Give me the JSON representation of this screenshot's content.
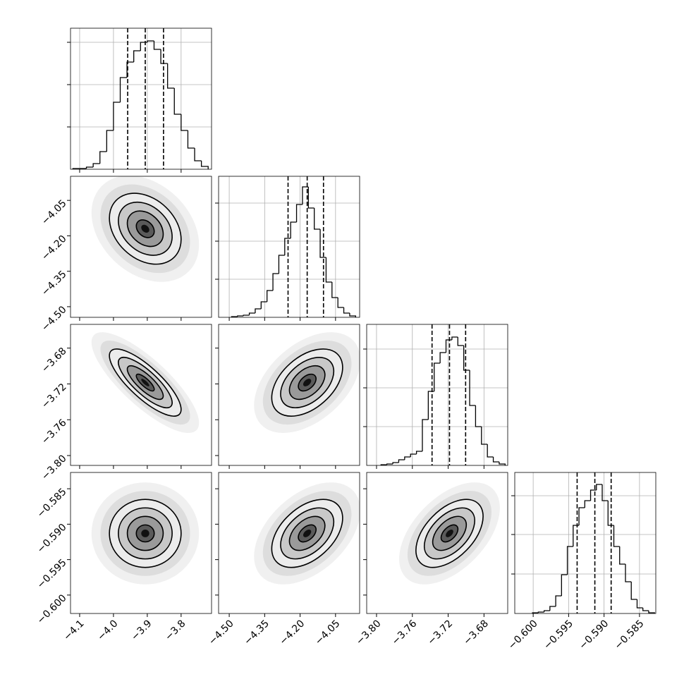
{
  "chart_data": {
    "type": "corner",
    "color": "#000000",
    "grid": true,
    "contour_levels": [
      0.5,
      1,
      1.5,
      2
    ],
    "hist_ylim": [
      0,
      200
    ],
    "params": [
      {
        "range": [
          -4.127,
          -3.71
        ],
        "ticks": [
          {
            "value": -4.1,
            "label": "−4.1"
          },
          {
            "value": -4.0,
            "label": "−4.0"
          },
          {
            "value": -3.9,
            "label": "−3.9"
          },
          {
            "value": -3.8,
            "label": "−3.8"
          }
        ],
        "quantiles": [
          -3.958,
          -3.906,
          -3.852
        ],
        "hist_yticks": [
          60,
          120,
          180
        ],
        "bins": [
          -4.12,
          -4.1,
          -4.08,
          -4.06,
          -4.04,
          -4.02,
          -4.0,
          -3.98,
          -3.96,
          -3.94,
          -3.92,
          -3.9,
          -3.88,
          -3.86,
          -3.84,
          -3.82,
          -3.8,
          -3.78,
          -3.76,
          -3.74,
          -3.72
        ],
        "counts": [
          1,
          1,
          3,
          8,
          25,
          55,
          95,
          130,
          152,
          168,
          180,
          182,
          170,
          150,
          115,
          78,
          55,
          30,
          12,
          4
        ]
      },
      {
        "range": [
          -4.545,
          -3.948
        ],
        "ticks": [
          {
            "value": -4.5,
            "label": "−4.50"
          },
          {
            "value": -4.35,
            "label": "−4.35"
          },
          {
            "value": -4.2,
            "label": "−4.20"
          },
          {
            "value": -4.05,
            "label": "−4.05"
          }
        ],
        "quantiles": [
          -4.251,
          -4.17,
          -4.101
        ],
        "hist_yticks": [
          54,
          108,
          162
        ],
        "bins": [
          -4.49,
          -4.465,
          -4.44,
          -4.415,
          -4.39,
          -4.365,
          -4.34,
          -4.315,
          -4.29,
          -4.265,
          -4.24,
          -4.215,
          -4.19,
          -4.165,
          -4.14,
          -4.115,
          -4.09,
          -4.065,
          -4.04,
          -4.015,
          -3.99,
          -3.965
        ],
        "counts": [
          1,
          2,
          3,
          6,
          12,
          22,
          38,
          62,
          88,
          112,
          135,
          160,
          185,
          155,
          125,
          85,
          50,
          28,
          14,
          6,
          2
        ]
      },
      {
        "range": [
          -3.811,
          -3.6535
        ],
        "ticks": [
          {
            "value": -3.8,
            "label": "−3.80"
          },
          {
            "value": -3.76,
            "label": "−3.76"
          },
          {
            "value": -3.72,
            "label": "−3.72"
          },
          {
            "value": -3.68,
            "label": "−3.68"
          }
        ],
        "quantiles": [
          -3.738,
          -3.7185,
          -3.7005
        ],
        "hist_yticks": [
          55,
          110,
          165
        ],
        "bins": [
          -3.795,
          -3.7884,
          -3.7818,
          -3.7752,
          -3.7686,
          -3.762,
          -3.7554,
          -3.7488,
          -3.7422,
          -3.7356,
          -3.729,
          -3.7224,
          -3.7158,
          -3.7092,
          -3.7026,
          -3.696,
          -3.6894,
          -3.6828,
          -3.6762,
          -3.6696,
          -3.663,
          -3.6564
        ],
        "counts": [
          1,
          2,
          4,
          8,
          12,
          16,
          20,
          65,
          105,
          145,
          160,
          178,
          182,
          170,
          135,
          85,
          55,
          30,
          12,
          5,
          2
        ]
      },
      {
        "range": [
          -0.6026,
          -0.5827
        ],
        "ticks": [
          {
            "value": -0.6,
            "label": "−0.600"
          },
          {
            "value": -0.595,
            "label": "−0.595"
          },
          {
            "value": -0.59,
            "label": "−0.590"
          },
          {
            "value": -0.585,
            "label": "−0.585"
          }
        ],
        "quantiles": [
          -0.5938,
          -0.5913,
          -0.589
        ],
        "hist_yticks": [
          56,
          112,
          167
        ],
        "bins": [
          -0.6001,
          -0.59928,
          -0.59846,
          -0.59764,
          -0.59682,
          -0.596,
          -0.59518,
          -0.59436,
          -0.59354,
          -0.59272,
          -0.5919,
          -0.59108,
          -0.59026,
          -0.58944,
          -0.58862,
          -0.5878,
          -0.58698,
          -0.58616,
          -0.58534,
          -0.58452,
          -0.5837,
          -0.58288
        ],
        "counts": [
          1,
          2,
          4,
          10,
          25,
          55,
          95,
          125,
          150,
          160,
          175,
          183,
          160,
          125,
          95,
          70,
          45,
          20,
          8,
          4,
          1
        ]
      }
    ],
    "pairs": [
      {
        "x": 0,
        "y": 1,
        "rho": -0.3
      },
      {
        "x": 0,
        "y": 2,
        "rho": -0.8
      },
      {
        "x": 1,
        "y": 2,
        "rho": 0.45
      },
      {
        "x": 0,
        "y": 3,
        "rho": 0
      },
      {
        "x": 1,
        "y": 3,
        "rho": 0.45
      },
      {
        "x": 2,
        "y": 3,
        "rho": 0.5
      }
    ]
  }
}
